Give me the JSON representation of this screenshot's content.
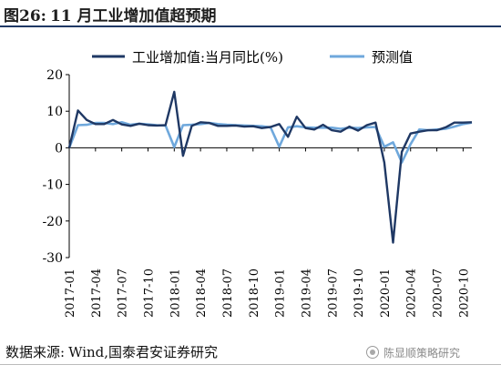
{
  "figure": {
    "label": "图26:",
    "text": "11 月工业增加值超预期"
  },
  "source": {
    "label": "数据来源:",
    "text": "Wind,国泰君安证券研究"
  },
  "watermark": {
    "text": "陈显顺策略研究"
  },
  "colors": {
    "series_actual": "#1f3864",
    "series_forecast": "#6fa8dc",
    "axis": "#000000"
  },
  "chart_data": {
    "type": "line",
    "title": "",
    "xlabel": "",
    "ylabel": "",
    "ylim": [
      -30,
      20
    ],
    "yticks": [
      -30,
      -20,
      -10,
      0,
      10,
      20
    ],
    "grid": false,
    "legend_position": "top",
    "x": [
      "2017-01",
      "2017-02",
      "2017-03",
      "2017-04",
      "2017-05",
      "2017-06",
      "2017-07",
      "2017-08",
      "2017-09",
      "2017-10",
      "2017-11",
      "2017-12",
      "2018-01",
      "2018-02",
      "2018-03",
      "2018-04",
      "2018-05",
      "2018-06",
      "2018-07",
      "2018-08",
      "2018-09",
      "2018-10",
      "2018-11",
      "2018-12",
      "2019-01",
      "2019-02",
      "2019-03",
      "2019-04",
      "2019-05",
      "2019-06",
      "2019-07",
      "2019-08",
      "2019-09",
      "2019-10",
      "2019-11",
      "2019-12",
      "2020-01",
      "2020-02",
      "2020-03",
      "2020-04",
      "2020-05",
      "2020-06",
      "2020-07",
      "2020-08",
      "2020-09",
      "2020-10",
      "2020-11"
    ],
    "x_tick_labels": [
      "2017-01",
      "2017-04",
      "2017-07",
      "2017-10",
      "2018-01",
      "2018-04",
      "2018-07",
      "2018-10",
      "2019-01",
      "2019-04",
      "2019-07",
      "2019-10",
      "2020-01",
      "2020-04",
      "2020-07",
      "2020-10"
    ],
    "series": [
      {
        "name": "工业增加值:当月同比(%)",
        "values": [
          0,
          10.2,
          7.6,
          6.5,
          6.5,
          7.6,
          6.4,
          6.0,
          6.6,
          6.2,
          6.1,
          6.2,
          15.3,
          -2.2,
          6.0,
          7.0,
          6.8,
          6.0,
          6.0,
          6.1,
          5.8,
          5.9,
          5.4,
          5.7,
          6.5,
          3.0,
          8.5,
          5.4,
          5.0,
          6.3,
          4.8,
          4.4,
          5.8,
          4.7,
          6.2,
          6.9,
          -4.0,
          -25.9,
          -1.1,
          3.9,
          4.4,
          4.8,
          4.8,
          5.6,
          6.9,
          6.9,
          7.0
        ]
      },
      {
        "name": "预测值",
        "values": [
          0,
          6.2,
          6.3,
          6.8,
          6.8,
          6.5,
          7.0,
          6.3,
          6.6,
          6.4,
          6.2,
          6.1,
          0.2,
          6.2,
          6.3,
          6.5,
          6.8,
          6.5,
          6.3,
          6.2,
          6.1,
          6.0,
          5.9,
          5.6,
          0.3,
          5.6,
          5.9,
          5.6,
          5.5,
          5.5,
          5.5,
          5.2,
          5.5,
          5.4,
          5.6,
          5.7,
          0.3,
          1.5,
          -4.0,
          1.0,
          5.0,
          4.8,
          5.0,
          5.2,
          5.8,
          6.5,
          6.9
        ]
      }
    ]
  }
}
